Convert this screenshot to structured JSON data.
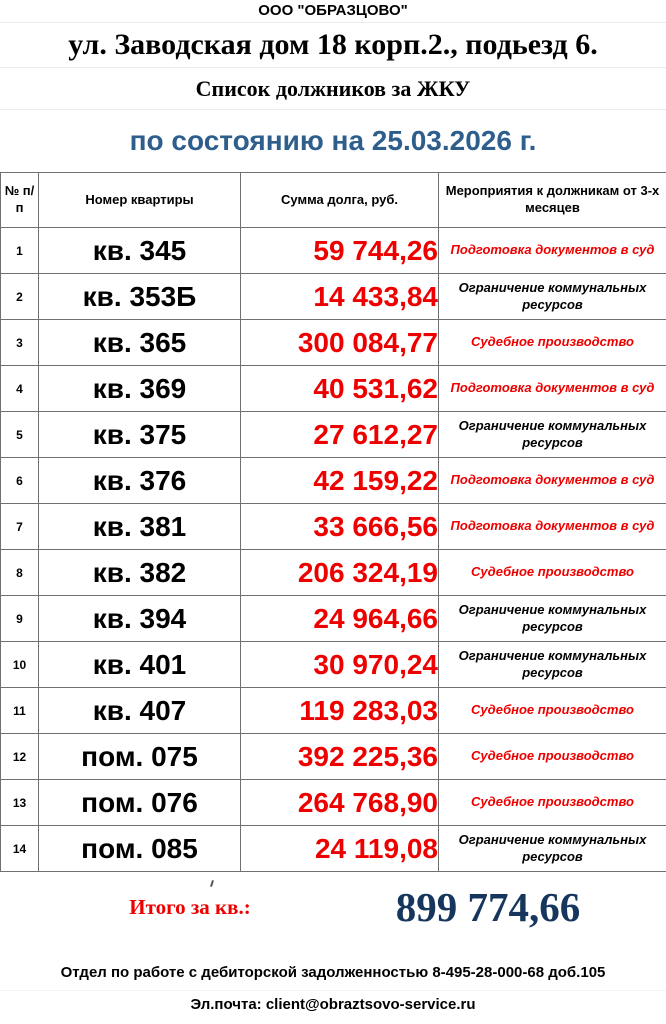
{
  "header": {
    "company": "ООО \"ОБРАЗЦОВО\"",
    "address": "ул. Заводская дом 18 корп.2., подьезд 6.",
    "subtitle": "Список должников за ЖКУ",
    "date_line": "по состоянию на 25.03.2026 г."
  },
  "colors": {
    "accent_blue": "#2e5e8c",
    "debt_red": "#ee0000",
    "total_navy": "#17365d",
    "grid_gray": "#707070"
  },
  "table": {
    "columns": [
      "№ п/п",
      "Номер квартиры",
      "Сумма долга, руб.",
      "Мероприятия к должникам от 3-х месяцев"
    ],
    "rows": [
      {
        "num": "1",
        "unit": "кв. 345",
        "amount": "59 744,26",
        "measure": "Подготовка  документов в суд",
        "measure_color": "red"
      },
      {
        "num": "2",
        "unit": "кв. 353Б",
        "amount": "14 433,84",
        "measure": "Ограничение  коммунальных ресурсов",
        "measure_color": "black"
      },
      {
        "num": "3",
        "unit": "кв. 365",
        "amount": "300 084,77",
        "measure": "Судебное производство",
        "measure_color": "red"
      },
      {
        "num": "4",
        "unit": "кв. 369",
        "amount": "40 531,62",
        "measure": "Подготовка  документов в суд",
        "measure_color": "red"
      },
      {
        "num": "5",
        "unit": "кв. 375",
        "amount": "27 612,27",
        "measure": "Ограничение  коммунальных ресурсов",
        "measure_color": "black"
      },
      {
        "num": "6",
        "unit": "кв. 376",
        "amount": "42 159,22",
        "measure": "Подготовка  документов в суд",
        "measure_color": "red"
      },
      {
        "num": "7",
        "unit": "кв. 381",
        "amount": "33 666,56",
        "measure": "Подготовка  документов в суд",
        "measure_color": "red"
      },
      {
        "num": "8",
        "unit": "кв. 382",
        "amount": "206 324,19",
        "measure": "Судебное производство",
        "measure_color": "red"
      },
      {
        "num": "9",
        "unit": "кв. 394",
        "amount": "24 964,66",
        "measure": "Ограничение  коммунальных ресурсов",
        "measure_color": "black"
      },
      {
        "num": "10",
        "unit": "кв. 401",
        "amount": "30 970,24",
        "measure": "Ограничение  коммунальных ресурсов",
        "measure_color": "black"
      },
      {
        "num": "11",
        "unit": "кв. 407",
        "amount": "119 283,03",
        "measure": "Судебное производство",
        "measure_color": "red"
      },
      {
        "num": "12",
        "unit": "пом. 075",
        "amount": "392 225,36",
        "measure": "Судебное производство",
        "measure_color": "red"
      },
      {
        "num": "13",
        "unit": "пом. 076",
        "amount": "264 768,90",
        "measure": "Судебное производство",
        "measure_color": "red"
      },
      {
        "num": "14",
        "unit": "пом. 085",
        "amount": "24 119,08",
        "measure": "Ограничение  коммунальных ресурсов",
        "measure_color": "black"
      }
    ]
  },
  "totals": {
    "label": "Итого за кв.:",
    "value": "899 774,66"
  },
  "footer": {
    "line1": "Отдел по работе с дебиторской задолженностью 8-495-28-000-68 доб.105",
    "line2": "Эл.почта: client@obraztsovo-service.ru"
  }
}
